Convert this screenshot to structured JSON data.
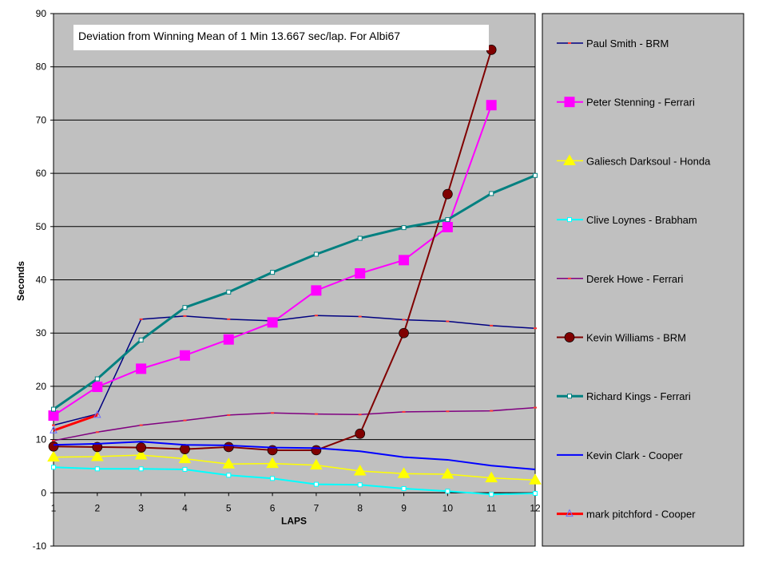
{
  "chart_data": {
    "type": "line",
    "title": "Deviation from Winning Mean of 1 Min 13.667 sec/lap. For Albi67",
    "xlabel": "LAPS",
    "ylabel": "Seconds",
    "x": [
      1,
      2,
      3,
      4,
      5,
      6,
      7,
      8,
      9,
      10,
      11,
      12
    ],
    "x_tick_labels": [
      "1",
      "2",
      "3",
      "4",
      "5",
      "6",
      "7",
      "8",
      "9",
      "10",
      "11",
      "12"
    ],
    "ylim": [
      -10,
      90
    ],
    "y_ticks": [
      -10,
      0,
      10,
      20,
      30,
      40,
      50,
      60,
      70,
      80,
      90
    ],
    "y_tick_labels": [
      "-10",
      "0",
      "10",
      "20",
      "30",
      "40",
      "50",
      "60",
      "70",
      "80",
      "90"
    ],
    "grid": "horizontal",
    "legend_position": "right",
    "plot_background": "#c0c0c0",
    "series": [
      {
        "name": "Paul Smith - BRM",
        "color": "#000080",
        "marker": "dash",
        "lw": 1.5,
        "values": [
          12.7,
          14.8,
          32.6,
          33.2,
          32.6,
          32.3,
          33.3,
          33.1,
          32.5,
          32.2,
          31.4,
          30.9
        ]
      },
      {
        "name": "Peter Stenning - Ferrari",
        "color": "#ff00ff",
        "marker": "square",
        "lw": 2,
        "values": [
          14.5,
          19.9,
          23.3,
          25.8,
          28.8,
          32.0,
          38.0,
          41.2,
          43.7,
          49.9,
          72.8,
          null
        ]
      },
      {
        "name": "Galiesch Darksoul - Honda",
        "color": "#ffff00",
        "marker": "triangle",
        "lw": 1.5,
        "values": [
          6.7,
          6.8,
          7.1,
          6.4,
          5.4,
          5.5,
          5.2,
          4.1,
          3.6,
          3.5,
          2.8,
          2.4
        ]
      },
      {
        "name": "Clive Loynes - Brabham",
        "color": "#00ffff",
        "marker": "smallsquare",
        "lw": 2,
        "values": [
          4.8,
          4.5,
          4.5,
          4.4,
          3.3,
          2.7,
          1.6,
          1.5,
          0.8,
          0.3,
          -0.3,
          -0.1
        ]
      },
      {
        "name": "Derek Howe - Ferrari",
        "color": "#800080",
        "marker": "dash",
        "lw": 1.5,
        "values": [
          9.8,
          11.4,
          12.7,
          13.6,
          14.6,
          15.0,
          14.8,
          14.7,
          15.2,
          15.3,
          15.4,
          16.0
        ]
      },
      {
        "name": "Kevin Williams - BRM",
        "color": "#800000",
        "marker": "circle",
        "lw": 2,
        "values": [
          8.7,
          8.6,
          8.5,
          8.2,
          8.6,
          8.0,
          8.0,
          11.1,
          30.0,
          56.1,
          83.2,
          null
        ]
      },
      {
        "name": "Richard Kings - Ferrari",
        "color": "#008080",
        "marker": "smallsquare",
        "lw": 3,
        "values": [
          15.7,
          21.4,
          28.7,
          34.8,
          37.7,
          41.4,
          44.8,
          47.8,
          49.8,
          51.3,
          56.2,
          59.6
        ]
      },
      {
        "name": "Kevin Clark - Cooper",
        "color": "#0000ff",
        "marker": "none",
        "lw": 2,
        "values": [
          9.0,
          9.2,
          9.6,
          9.0,
          8.9,
          8.5,
          8.4,
          7.8,
          6.7,
          6.2,
          5.1,
          4.4
        ]
      },
      {
        "name": "mark pitchford - Cooper",
        "color": "#ff0000",
        "marker": "triangle-open",
        "lw": 3,
        "values": [
          11.7,
          14.6,
          null,
          null,
          null,
          null,
          null,
          null,
          null,
          null,
          null,
          null
        ]
      }
    ]
  }
}
